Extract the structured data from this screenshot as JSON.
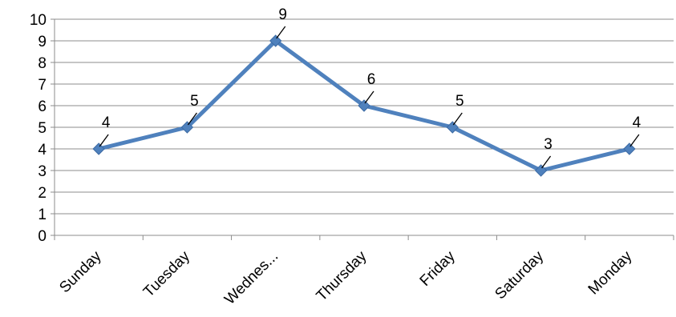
{
  "chart_data": {
    "type": "line",
    "categories": [
      "Sunday",
      "Tuesday",
      "Wednes...",
      "Thursday",
      "Friday",
      "Saturday",
      "Monday"
    ],
    "values": [
      4,
      5,
      9,
      6,
      5,
      3,
      4
    ],
    "data_labels": [
      "4",
      "5",
      "9",
      "6",
      "5",
      "3",
      "4"
    ],
    "y_ticks": [
      "0",
      "1",
      "2",
      "3",
      "4",
      "5",
      "6",
      "7",
      "8",
      "9",
      "10"
    ],
    "ylim": [
      0,
      10
    ],
    "title": "",
    "xlabel": "",
    "ylabel": "",
    "grid": true,
    "legend": "none",
    "line_color": "#4f81bd",
    "marker": "diamond"
  }
}
